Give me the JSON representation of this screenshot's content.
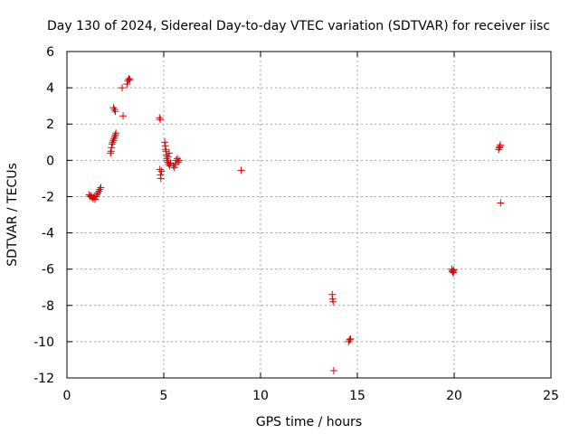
{
  "chart_data": {
    "type": "scatter",
    "title": "Day 130 of 2024, Sidereal Day-to-day VTEC variation (SDTVAR) for receiver iisc",
    "xlabel": "GPS time / hours",
    "ylabel": "SDTVAR / TECUs",
    "xlim": [
      0,
      25
    ],
    "ylim": [
      -12,
      6
    ],
    "xticks": [
      "0",
      "5",
      "10",
      "15",
      "20",
      "25"
    ],
    "yticks": [
      "-12",
      "-10",
      "-8",
      "-6",
      "-4",
      "-2",
      "0",
      "2",
      "4",
      "6"
    ],
    "grid": true,
    "marker": "plus",
    "color": "#e00000",
    "series": [
      {
        "points": [
          [
            1.15,
            -1.9
          ],
          [
            1.2,
            -2.0
          ],
          [
            1.25,
            -1.95
          ],
          [
            1.3,
            -2.05
          ],
          [
            1.35,
            -2.1
          ],
          [
            1.4,
            -2.0
          ],
          [
            1.45,
            -2.15
          ],
          [
            1.5,
            -2.0
          ],
          [
            1.55,
            -1.9
          ],
          [
            1.6,
            -1.8
          ],
          [
            1.65,
            -1.7
          ],
          [
            1.7,
            -1.6
          ],
          [
            1.75,
            -1.5
          ],
          [
            2.25,
            0.4
          ],
          [
            2.28,
            0.5
          ],
          [
            2.3,
            0.7
          ],
          [
            2.33,
            0.9
          ],
          [
            2.36,
            1.0
          ],
          [
            2.4,
            1.1
          ],
          [
            2.43,
            1.2
          ],
          [
            2.46,
            1.3
          ],
          [
            2.5,
            1.4
          ],
          [
            2.53,
            1.5
          ],
          [
            2.4,
            2.9
          ],
          [
            2.45,
            2.8
          ],
          [
            2.5,
            2.7
          ],
          [
            2.85,
            4.0
          ],
          [
            2.9,
            2.45
          ],
          [
            3.1,
            4.2
          ],
          [
            3.15,
            4.4
          ],
          [
            3.2,
            4.5
          ],
          [
            3.25,
            4.45
          ],
          [
            4.78,
            2.35
          ],
          [
            4.82,
            2.25
          ],
          [
            4.8,
            -0.5
          ],
          [
            4.83,
            -0.8
          ],
          [
            4.85,
            -1.0
          ],
          [
            4.88,
            -0.6
          ],
          [
            5.05,
            1.0
          ],
          [
            5.08,
            0.8
          ],
          [
            5.1,
            0.6
          ],
          [
            5.12,
            0.5
          ],
          [
            5.14,
            0.3
          ],
          [
            5.16,
            0.1
          ],
          [
            5.18,
            0.0
          ],
          [
            5.2,
            -0.1
          ],
          [
            5.22,
            0.2
          ],
          [
            5.25,
            -0.2
          ],
          [
            5.28,
            0.4
          ],
          [
            5.3,
            -0.3
          ],
          [
            5.35,
            -0.15
          ],
          [
            5.5,
            -0.3
          ],
          [
            5.55,
            -0.4
          ],
          [
            5.6,
            -0.2
          ],
          [
            5.65,
            0.0
          ],
          [
            5.7,
            0.1
          ],
          [
            5.75,
            -0.1
          ],
          [
            5.8,
            0.0
          ],
          [
            9.0,
            -0.55
          ],
          [
            13.7,
            -7.4
          ],
          [
            13.72,
            -7.65
          ],
          [
            13.75,
            -7.8
          ],
          [
            13.78,
            -11.6
          ],
          [
            14.55,
            -10.0
          ],
          [
            14.6,
            -9.9
          ],
          [
            14.65,
            -9.85
          ],
          [
            19.88,
            -6.0
          ],
          [
            19.9,
            -6.1
          ],
          [
            19.93,
            -6.15
          ],
          [
            19.96,
            -6.2
          ],
          [
            19.98,
            -6.05
          ],
          [
            22.3,
            0.6
          ],
          [
            22.33,
            0.7
          ],
          [
            22.36,
            0.75
          ],
          [
            22.38,
            0.85
          ],
          [
            22.4,
            -2.35
          ]
        ]
      }
    ]
  }
}
